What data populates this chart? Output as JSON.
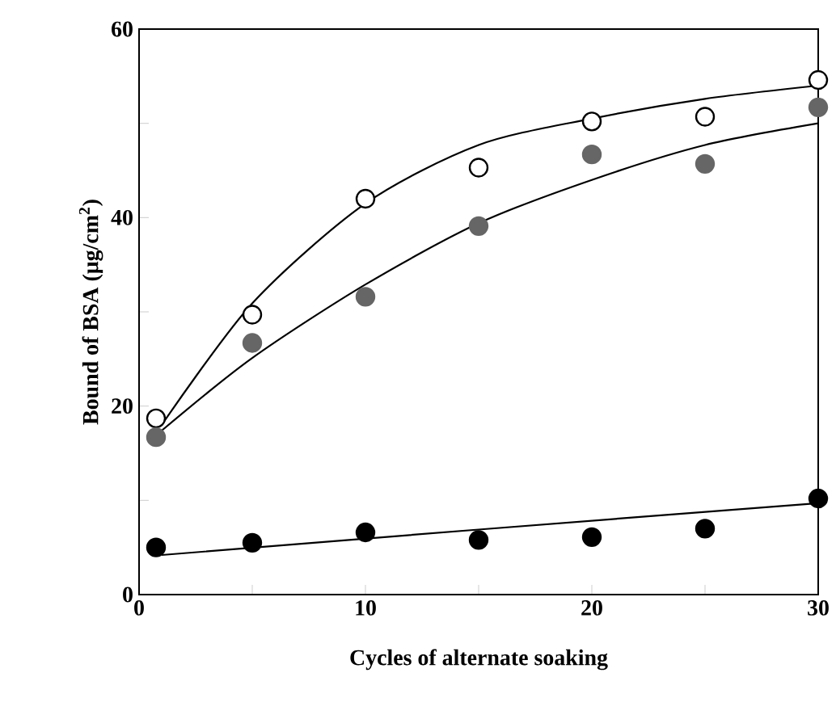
{
  "chart_data": {
    "type": "scatter",
    "xlabel": "Cycles of alternate soaking",
    "ylabel": "Bound of BSA (μg/cm$^{2}$)",
    "xlim": [
      0,
      30
    ],
    "ylim": [
      0,
      60
    ],
    "xticks": [
      0,
      {
        "value": 5,
        "label": null
      },
      10,
      {
        "value": 15,
        "label": null
      },
      20,
      {
        "value": 25,
        "label": null
      },
      30
    ],
    "yticks": [
      0,
      {
        "value": 10,
        "label": null
      },
      20,
      {
        "value": 30,
        "label": null
      },
      40,
      {
        "value": 50,
        "label": null
      },
      60
    ],
    "grid": false,
    "series": [
      {
        "marker": "circle",
        "color": "#ffffff",
        "x": [
          0.75,
          5,
          10,
          15,
          20,
          25,
          30
        ],
        "values": [
          18.7,
          29.7,
          42.0,
          45.3,
          50.2,
          50.7,
          54.6
        ]
      },
      {
        "marker": "circle",
        "color": "#666666",
        "x": [
          0.75,
          5,
          10,
          15,
          20,
          25,
          30
        ],
        "values": [
          16.7,
          26.7,
          31.6,
          39.1,
          46.7,
          45.7,
          51.7
        ]
      },
      {
        "marker": "circle",
        "color": "#000000",
        "x": [
          0.75,
          5,
          10,
          15,
          20,
          25,
          30
        ],
        "values": [
          5.0,
          5.5,
          6.6,
          5.8,
          6.1,
          7.0,
          10.2
        ]
      },
      {
        "type": "line",
        "marker": "none",
        "color": "#000000",
        "x": [
          1,
          5,
          10,
          15,
          20,
          25,
          30
        ],
        "values": [
          18.0,
          30.9,
          41.5,
          47.7,
          50.5,
          52.6,
          54.0
        ]
      },
      {
        "type": "line",
        "marker": "none",
        "color": "#000000",
        "x": [
          1,
          5,
          10,
          15,
          20,
          25,
          30
        ],
        "values": [
          17.4,
          25.1,
          32.9,
          39.4,
          44.0,
          47.7,
          50.0
        ]
      },
      {
        "type": "line",
        "marker": "none",
        "color": "#000000",
        "x": [
          1,
          15,
          30
        ],
        "values": [
          4.2,
          6.9,
          9.7
        ]
      }
    ]
  }
}
